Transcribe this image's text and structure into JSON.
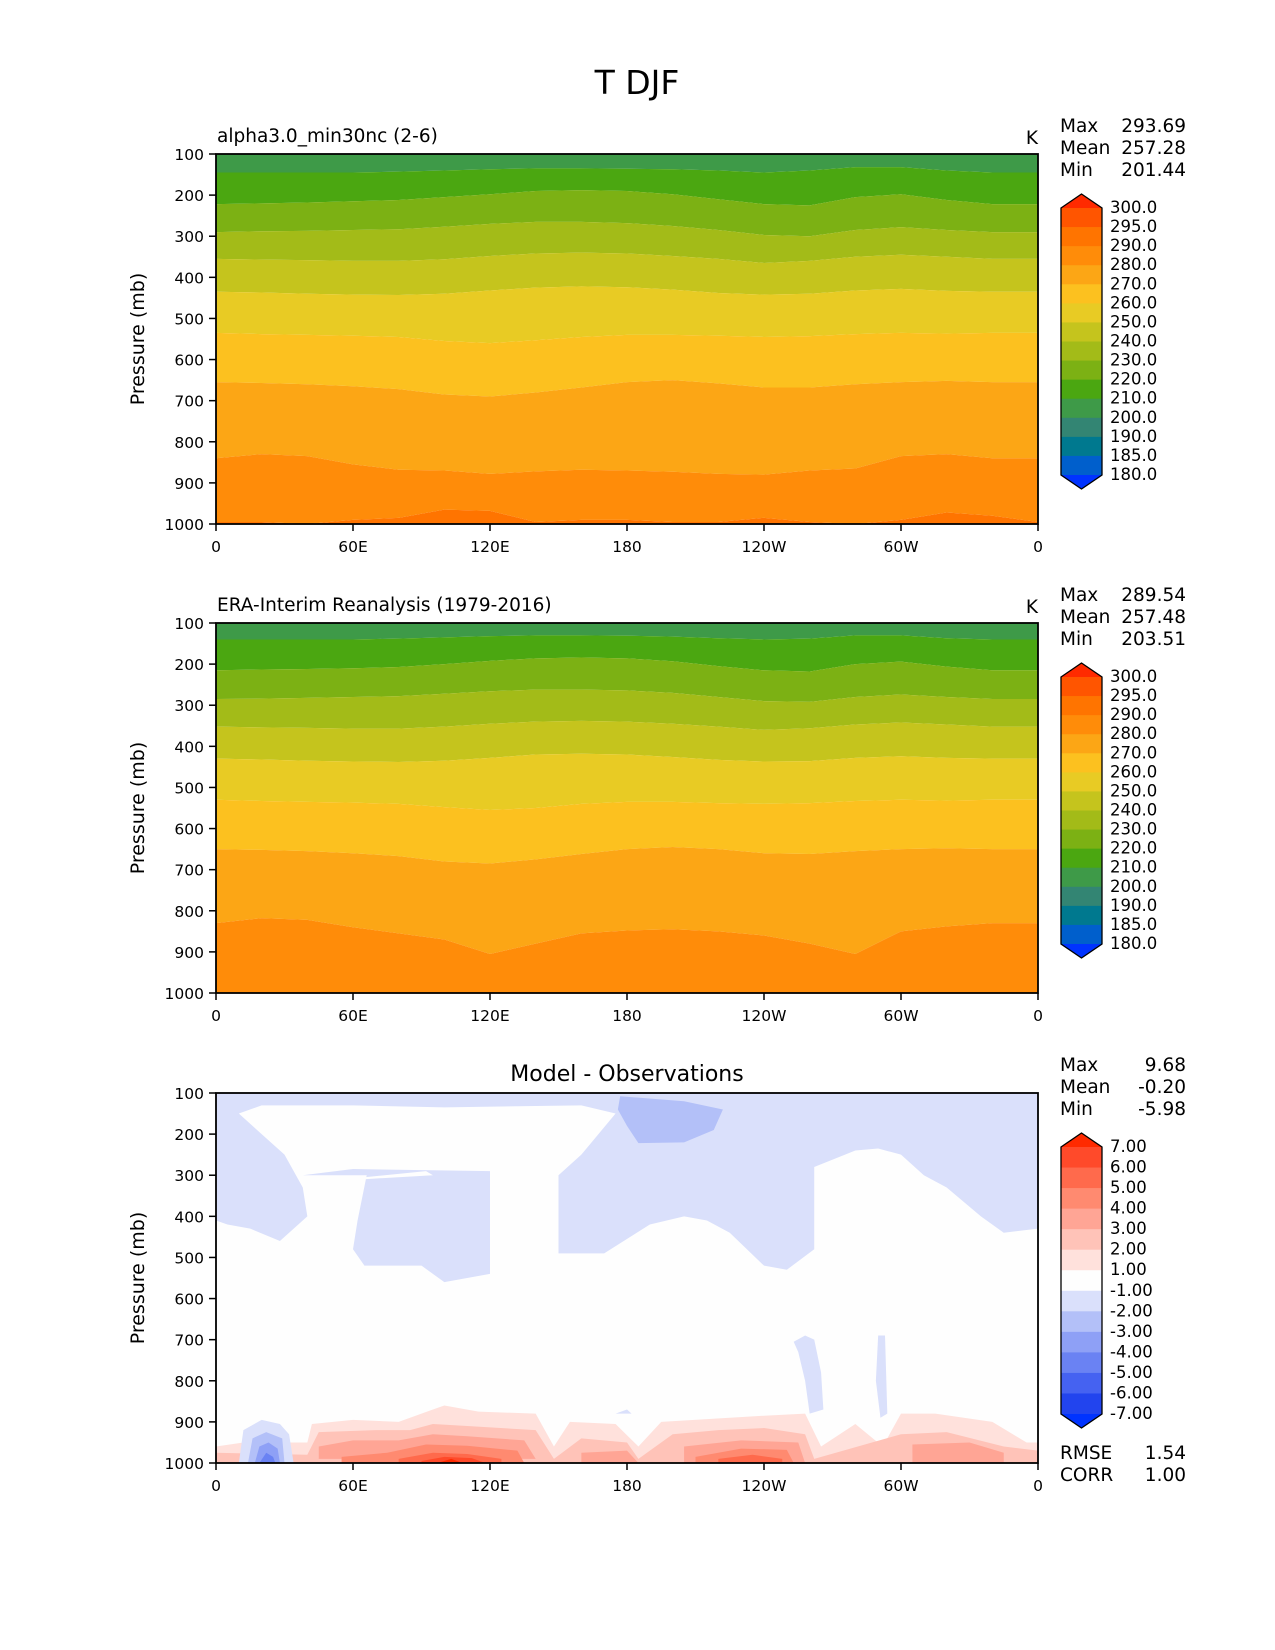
{
  "figure_title": "T DJF",
  "chart_data": [
    {
      "type": "heatmap",
      "subtype": "filled-contour pressure-longitude cross section",
      "title": "alpha3.0_min30nc (2-6)",
      "units": "K",
      "ylabel": "Pressure (mb)",
      "xlabel": "",
      "xticks": [
        "0",
        "60E",
        "120E",
        "180",
        "120W",
        "60W",
        "0"
      ],
      "xlim": [
        0,
        360
      ],
      "yticks": [
        "100",
        "200",
        "300",
        "400",
        "500",
        "600",
        "700",
        "800",
        "900",
        "1000"
      ],
      "ylim": [
        1000,
        100
      ],
      "stats": {
        "Max": "293.69",
        "Mean": "257.28",
        "Min": "201.44"
      },
      "colorbar": {
        "levels": [
          "300.0",
          "295.0",
          "290.0",
          "280.0",
          "270.0",
          "260.0",
          "250.0",
          "240.0",
          "230.0",
          "220.0",
          "210.0",
          "200.0",
          "190.0",
          "185.0",
          "180.0"
        ],
        "colors": [
          "#ff2a00",
          "#ff5500",
          "#ff7400",
          "#ff8c09",
          "#fca615",
          "#fcc11f",
          "#e8cb24",
          "#c5c41d",
          "#a3bb18",
          "#7cb114",
          "#4ba711",
          "#3e9a48",
          "#338573",
          "#00798f",
          "#005fcc",
          "#0033ff"
        ],
        "extend": "both"
      },
      "x": [
        0,
        20,
        40,
        60,
        80,
        100,
        120,
        140,
        160,
        180,
        200,
        220,
        240,
        260,
        280,
        300,
        320,
        340,
        360
      ],
      "boundaries": [
        {
          "level": 210,
          "p": [
            145,
            145,
            145,
            145,
            143,
            140,
            137,
            135,
            135,
            136,
            137,
            140,
            145,
            140,
            132,
            132,
            140,
            145,
            145
          ]
        },
        {
          "level": 220,
          "p": [
            222,
            220,
            218,
            215,
            212,
            205,
            198,
            190,
            188,
            190,
            198,
            210,
            222,
            225,
            205,
            198,
            212,
            222,
            222
          ]
        },
        {
          "level": 230,
          "p": [
            290,
            288,
            287,
            285,
            283,
            277,
            270,
            265,
            265,
            268,
            275,
            285,
            297,
            300,
            285,
            278,
            285,
            290,
            290
          ]
        },
        {
          "level": 240,
          "p": [
            355,
            357,
            358,
            360,
            360,
            356,
            348,
            342,
            340,
            342,
            348,
            355,
            365,
            360,
            350,
            345,
            350,
            355,
            355
          ]
        },
        {
          "level": 250,
          "p": [
            435,
            437,
            440,
            442,
            443,
            440,
            432,
            425,
            422,
            424,
            430,
            438,
            442,
            440,
            432,
            428,
            433,
            435,
            435
          ]
        },
        {
          "level": 260,
          "p": [
            535,
            538,
            540,
            542,
            545,
            555,
            560,
            553,
            545,
            540,
            540,
            542,
            545,
            543,
            538,
            535,
            537,
            535,
            535
          ]
        },
        {
          "level": 270,
          "p": [
            655,
            657,
            660,
            665,
            672,
            685,
            690,
            680,
            668,
            655,
            650,
            658,
            668,
            668,
            660,
            655,
            652,
            655,
            655
          ]
        },
        {
          "level": 280,
          "p": [
            840,
            830,
            835,
            855,
            868,
            870,
            878,
            872,
            868,
            870,
            873,
            878,
            880,
            870,
            865,
            835,
            830,
            840,
            840
          ]
        },
        {
          "level": 290,
          "p": [
            995,
            995,
            1000,
            990,
            985,
            965,
            968,
            995,
            990,
            990,
            995,
            995,
            985,
            995,
            1000,
            990,
            972,
            980,
            995
          ]
        }
      ]
    },
    {
      "type": "heatmap",
      "subtype": "filled-contour pressure-longitude cross section",
      "title": "ERA-Interim Reanalysis (1979-2016)",
      "units": "K",
      "ylabel": "Pressure (mb)",
      "xlabel": "",
      "xticks": [
        "0",
        "60E",
        "120E",
        "180",
        "120W",
        "60W",
        "0"
      ],
      "xlim": [
        0,
        360
      ],
      "yticks": [
        "100",
        "200",
        "300",
        "400",
        "500",
        "600",
        "700",
        "800",
        "900",
        "1000"
      ],
      "ylim": [
        1000,
        100
      ],
      "stats": {
        "Max": "289.54",
        "Mean": "257.48",
        "Min": "203.51"
      },
      "colorbar": {
        "levels": [
          "300.0",
          "295.0",
          "290.0",
          "280.0",
          "270.0",
          "260.0",
          "250.0",
          "240.0",
          "230.0",
          "220.0",
          "210.0",
          "200.0",
          "190.0",
          "185.0",
          "180.0"
        ],
        "colors": [
          "#ff2a00",
          "#ff5500",
          "#ff7400",
          "#ff8c09",
          "#fca615",
          "#fcc11f",
          "#e8cb24",
          "#c5c41d",
          "#a3bb18",
          "#7cb114",
          "#4ba711",
          "#3e9a48",
          "#338573",
          "#00798f",
          "#005fcc",
          "#0033ff"
        ],
        "extend": "both"
      },
      "x": [
        0,
        20,
        40,
        60,
        80,
        100,
        120,
        140,
        160,
        180,
        200,
        220,
        240,
        260,
        280,
        300,
        320,
        340,
        360
      ],
      "boundaries": [
        {
          "level": 210,
          "p": [
            140,
            140,
            140,
            140,
            138,
            135,
            132,
            130,
            130,
            131,
            133,
            137,
            140,
            138,
            130,
            130,
            137,
            140,
            140
          ]
        },
        {
          "level": 220,
          "p": [
            215,
            213,
            212,
            210,
            207,
            200,
            192,
            186,
            184,
            186,
            193,
            205,
            215,
            218,
            200,
            194,
            206,
            215,
            215
          ]
        },
        {
          "level": 230,
          "p": [
            285,
            284,
            282,
            280,
            278,
            272,
            266,
            262,
            262,
            264,
            270,
            280,
            290,
            292,
            280,
            274,
            280,
            285,
            285
          ]
        },
        {
          "level": 240,
          "p": [
            352,
            354,
            355,
            357,
            357,
            352,
            345,
            340,
            338,
            340,
            345,
            352,
            360,
            356,
            347,
            342,
            347,
            352,
            352
          ]
        },
        {
          "level": 250,
          "p": [
            430,
            432,
            435,
            437,
            438,
            435,
            428,
            420,
            418,
            420,
            426,
            433,
            437,
            436,
            428,
            424,
            428,
            430,
            430
          ]
        },
        {
          "level": 260,
          "p": [
            530,
            533,
            535,
            537,
            540,
            548,
            555,
            550,
            540,
            535,
            535,
            538,
            540,
            538,
            533,
            530,
            532,
            530,
            530
          ]
        },
        {
          "level": 270,
          "p": [
            650,
            652,
            655,
            660,
            667,
            680,
            685,
            675,
            662,
            650,
            645,
            650,
            660,
            662,
            655,
            650,
            648,
            650,
            650
          ]
        },
        {
          "level": 280,
          "p": [
            830,
            818,
            822,
            840,
            855,
            870,
            905,
            880,
            855,
            848,
            845,
            850,
            860,
            880,
            905,
            850,
            838,
            830,
            830
          ]
        }
      ]
    },
    {
      "type": "heatmap",
      "subtype": "filled-contour pressure-longitude cross section (difference)",
      "title": "Model - Observations",
      "units": "",
      "ylabel": "Pressure (mb)",
      "xlabel": "",
      "xticks": [
        "0",
        "60E",
        "120E",
        "180",
        "120W",
        "60W",
        "0"
      ],
      "xlim": [
        0,
        360
      ],
      "yticks": [
        "100",
        "200",
        "300",
        "400",
        "500",
        "600",
        "700",
        "800",
        "900",
        "1000"
      ],
      "ylim": [
        1000,
        100
      ],
      "stats": {
        "Max": "9.68",
        "Mean": "-0.20",
        "Min": "-5.98"
      },
      "metrics": {
        "RMSE": "1.54",
        "CORR": "1.00"
      },
      "colorbar": {
        "levels": [
          "7.00",
          "6.00",
          "5.00",
          "4.00",
          "3.00",
          "2.00",
          "1.00",
          "-1.00",
          "-2.00",
          "-3.00",
          "-4.00",
          "-5.00",
          "-6.00",
          "-7.00"
        ],
        "colors": [
          "#ff2a00",
          "#ff4a2a",
          "#ff6a4c",
          "#ff8a70",
          "#ffa595",
          "#ffc3b8",
          "#ffe1dc",
          "#fefefe",
          "#dae0fb",
          "#b3c0f8",
          "#8ea0f6",
          "#6a82f3",
          "#4562f1",
          "#2244ee",
          "#0033ff"
        ],
        "extend": "both"
      },
      "regions": [
        {
          "value_range": "-2 to -1",
          "shape": "upper-troposphere cold bias, 100–550 mb, broad"
        },
        {
          "value_range": "-3 to -2",
          "shape": "patch near 100–240W, 110–230 mb"
        },
        {
          "value_range": "1 to 7",
          "shape": "near-surface warm bias 850–1000 mb, peaks near 100E and 130W"
        },
        {
          "value_range": "-6 to -1",
          "shape": "near-surface cold bias near 20–30E, 850–1000 mb"
        }
      ]
    }
  ]
}
